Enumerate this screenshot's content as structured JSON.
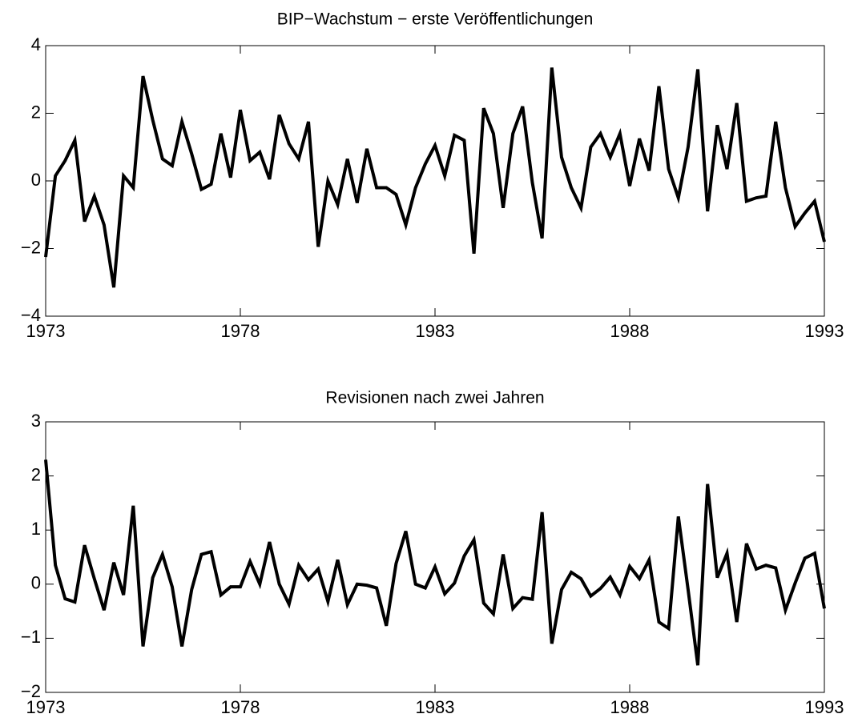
{
  "chart_data": [
    {
      "type": "line",
      "title": "BIP−Wachstum − erste Veröffentlichungen",
      "x": [
        1973,
        1973.25,
        1973.5,
        1973.75,
        1974,
        1974.25,
        1974.5,
        1974.75,
        1975,
        1975.25,
        1975.5,
        1975.75,
        1976,
        1976.25,
        1976.5,
        1976.75,
        1977,
        1977.25,
        1977.5,
        1977.75,
        1978,
        1978.25,
        1978.5,
        1978.75,
        1979,
        1979.25,
        1979.5,
        1979.75,
        1980,
        1980.25,
        1980.5,
        1980.75,
        1981,
        1981.25,
        1981.5,
        1981.75,
        1982,
        1982.25,
        1982.5,
        1982.75,
        1983,
        1983.25,
        1983.5,
        1983.75,
        1984,
        1984.25,
        1984.5,
        1984.75,
        1985,
        1985.25,
        1985.5,
        1985.75,
        1986,
        1986.25,
        1986.5,
        1986.75,
        1987,
        1987.25,
        1987.5,
        1987.75,
        1988,
        1988.25,
        1988.5,
        1988.75,
        1989,
        1989.25,
        1989.5,
        1989.75,
        1990,
        1990.25,
        1990.5,
        1990.75,
        1991,
        1991.25,
        1991.5,
        1991.75,
        1992,
        1992.25,
        1992.5,
        1992.75,
        1993
      ],
      "values": [
        -2.25,
        0.15,
        0.6,
        1.2,
        -1.2,
        -0.45,
        -1.3,
        -3.15,
        0.15,
        -0.2,
        3.1,
        1.8,
        0.65,
        0.45,
        1.75,
        0.8,
        -0.25,
        -0.1,
        1.4,
        0.1,
        2.1,
        0.6,
        0.85,
        0.05,
        1.95,
        1.1,
        0.65,
        1.75,
        -1.95,
        0,
        -0.7,
        0.65,
        -0.65,
        0.95,
        -0.2,
        -0.2,
        -0.4,
        -1.3,
        -0.2,
        0.5,
        1.05,
        0.15,
        1.35,
        1.2,
        -2.15,
        2.15,
        1.4,
        -0.8,
        1.4,
        2.2,
        -0.05,
        -1.7,
        3.35,
        0.7,
        -0.2,
        -0.8,
        1.0,
        1.4,
        0.7,
        1.4,
        -0.15,
        1.25,
        0.3,
        2.8,
        0.35,
        -0.5,
        1.0,
        3.3,
        -0.9,
        1.65,
        0.35,
        2.3,
        -0.6,
        -0.5,
        -0.45,
        1.75,
        -0.2,
        -1.35,
        -0.95,
        -0.6,
        -1.8
      ],
      "color": "#000000",
      "xlim": [
        1973,
        1993
      ],
      "xticks": [
        1973,
        1978,
        1983,
        1988,
        1993
      ],
      "ylim": [
        -4,
        4
      ],
      "yticks": [
        {
          "value": -4,
          "label": "−4"
        },
        {
          "value": -2,
          "label": "−2"
        },
        0,
        2,
        4
      ]
    },
    {
      "type": "line",
      "title": "Revisionen nach zwei Jahren",
      "x": [
        1973,
        1973.25,
        1973.5,
        1973.75,
        1974,
        1974.25,
        1974.5,
        1974.75,
        1975,
        1975.25,
        1975.5,
        1975.75,
        1976,
        1976.25,
        1976.5,
        1976.75,
        1977,
        1977.25,
        1977.5,
        1977.75,
        1978,
        1978.25,
        1978.5,
        1978.75,
        1979,
        1979.25,
        1979.5,
        1979.75,
        1980,
        1980.25,
        1980.5,
        1980.75,
        1981,
        1981.25,
        1981.5,
        1981.75,
        1982,
        1982.25,
        1982.5,
        1982.75,
        1983,
        1983.25,
        1983.5,
        1983.75,
        1984,
        1984.25,
        1984.5,
        1984.75,
        1985,
        1985.25,
        1985.5,
        1985.75,
        1986,
        1986.25,
        1986.5,
        1986.75,
        1987,
        1987.25,
        1987.5,
        1987.75,
        1988,
        1988.25,
        1988.5,
        1988.75,
        1989,
        1989.25,
        1989.5,
        1989.75,
        1990,
        1990.25,
        1990.5,
        1990.75,
        1991,
        1991.25,
        1991.5,
        1991.75,
        1992,
        1992.25,
        1992.5,
        1992.75,
        1993
      ],
      "values": [
        2.3,
        0.35,
        -0.27,
        -0.33,
        0.72,
        0.1,
        -0.48,
        0.4,
        -0.2,
        1.45,
        -1.15,
        0.12,
        0.55,
        -0.05,
        -1.15,
        -0.1,
        0.55,
        0.6,
        -0.2,
        -0.05,
        -0.05,
        0.42,
        0,
        0.78,
        0,
        -0.37,
        0.35,
        0.08,
        0.28,
        -0.32,
        0.45,
        -0.38,
        0,
        -0.02,
        -0.07,
        -0.77,
        0.38,
        0.98,
        0,
        -0.07,
        0.32,
        -0.18,
        0.02,
        0.52,
        0.82,
        -0.35,
        -0.55,
        0.55,
        -0.45,
        -0.25,
        -0.28,
        1.33,
        -1.1,
        -0.1,
        0.22,
        0.1,
        -0.22,
        -0.08,
        0.13,
        -0.2,
        0.33,
        0.1,
        0.45,
        -0.7,
        -0.82,
        1.25,
        -0.1,
        -1.5,
        1.85,
        0.12,
        0.57,
        -0.7,
        0.75,
        0.28,
        0.35,
        0.3,
        -0.48,
        0.02,
        0.48,
        0.57,
        -0.45
      ],
      "color": "#000000",
      "xlim": [
        1973,
        1993
      ],
      "xticks": [
        1973,
        1978,
        1983,
        1988,
        1993
      ],
      "ylim": [
        -2,
        3
      ],
      "yticks": [
        {
          "value": -2,
          "label": "−2"
        },
        {
          "value": -1,
          "label": "−1"
        },
        0,
        1,
        2,
        3
      ]
    }
  ]
}
